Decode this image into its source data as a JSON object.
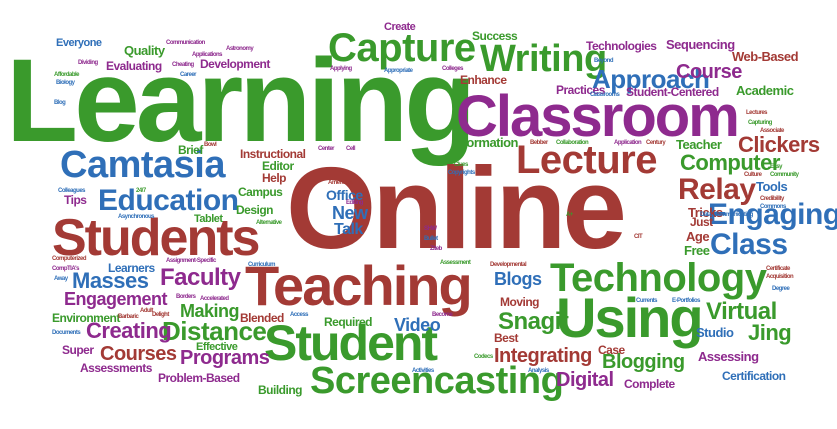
{
  "palette": {
    "green": "#3a9a2c",
    "red": "#a33a35",
    "purple": "#8e2a8e",
    "blue": "#2f6fb8",
    "olive": "#6d8a2a",
    "teal": "#2a7f8a"
  },
  "words": [
    {
      "text": "Learning",
      "color": "green"
    },
    {
      "text": "Online",
      "color": "red"
    },
    {
      "text": "Classroom",
      "color": "purple"
    },
    {
      "text": "Capture",
      "color": "green"
    },
    {
      "text": "Writing",
      "color": "green"
    },
    {
      "text": "Teaching",
      "color": "red"
    },
    {
      "text": "Student",
      "color": "green"
    },
    {
      "text": "Students",
      "color": "red"
    },
    {
      "text": "Technology",
      "color": "green"
    },
    {
      "text": "Using",
      "color": "green"
    },
    {
      "text": "Camtasia",
      "color": "blue"
    },
    {
      "text": "Lecture",
      "color": "red"
    },
    {
      "text": "Screencasting",
      "color": "green"
    },
    {
      "text": "Education",
      "color": "blue"
    },
    {
      "text": "Engaging",
      "color": "blue"
    },
    {
      "text": "Class",
      "color": "blue"
    },
    {
      "text": "Relay",
      "color": "red"
    },
    {
      "text": "Approach",
      "color": "blue"
    },
    {
      "text": "Course",
      "color": "purple"
    },
    {
      "text": "Faculty",
      "color": "purple"
    },
    {
      "text": "Masses",
      "color": "blue"
    },
    {
      "text": "Distance",
      "color": "green"
    },
    {
      "text": "Virtual",
      "color": "green"
    },
    {
      "text": "Jing",
      "color": "green"
    },
    {
      "text": "Computer",
      "color": "green"
    },
    {
      "text": "Clickers",
      "color": "red"
    },
    {
      "text": "Engagement",
      "color": "purple"
    },
    {
      "text": "Creating",
      "color": "purple"
    },
    {
      "text": "Courses",
      "color": "red"
    },
    {
      "text": "Programs",
      "color": "purple"
    },
    {
      "text": "Integrating",
      "color": "red"
    },
    {
      "text": "Digital",
      "color": "purple"
    },
    {
      "text": "Blogging",
      "color": "green"
    },
    {
      "text": "Snagit",
      "color": "green"
    },
    {
      "text": "Video",
      "color": "blue"
    },
    {
      "text": "Blogs",
      "color": "blue"
    },
    {
      "text": "Making",
      "color": "green"
    },
    {
      "text": "New",
      "color": "blue"
    },
    {
      "text": "Talk",
      "color": "blue"
    },
    {
      "text": "Office",
      "color": "blue"
    },
    {
      "text": "Sequencing",
      "color": "purple"
    },
    {
      "text": "Technologies",
      "color": "purple"
    },
    {
      "text": "Success",
      "color": "green"
    },
    {
      "text": "Create",
      "color": "purple"
    },
    {
      "text": "Web-Based",
      "color": "red"
    },
    {
      "text": "Academic",
      "color": "green"
    },
    {
      "text": "Student-Centered",
      "color": "purple"
    },
    {
      "text": "Practices",
      "color": "purple"
    },
    {
      "text": "Enhance",
      "color": "red"
    },
    {
      "text": "Information",
      "color": "green"
    },
    {
      "text": "Teacher",
      "color": "green"
    },
    {
      "text": "Tools",
      "color": "blue"
    },
    {
      "text": "Tricks",
      "color": "red"
    },
    {
      "text": "Just",
      "color": "red"
    },
    {
      "text": "Age",
      "color": "red"
    },
    {
      "text": "Free",
      "color": "green"
    },
    {
      "text": "Studio",
      "color": "blue"
    },
    {
      "text": "Assessing",
      "color": "purple"
    },
    {
      "text": "Certification",
      "color": "blue"
    },
    {
      "text": "Complete",
      "color": "purple"
    },
    {
      "text": "Case",
      "color": "red"
    },
    {
      "text": "Best",
      "color": "red"
    },
    {
      "text": "Moving",
      "color": "red"
    },
    {
      "text": "Required",
      "color": "green"
    },
    {
      "text": "Blended",
      "color": "red"
    },
    {
      "text": "Effective",
      "color": "green"
    },
    {
      "text": "Super",
      "color": "purple"
    },
    {
      "text": "Environment",
      "color": "green"
    },
    {
      "text": "Learners",
      "color": "blue"
    },
    {
      "text": "Assessments",
      "color": "purple"
    },
    {
      "text": "Problem-Based",
      "color": "purple"
    },
    {
      "text": "Building",
      "color": "green"
    },
    {
      "text": "Design",
      "color": "green"
    },
    {
      "text": "Campus",
      "color": "green"
    },
    {
      "text": "Help",
      "color": "red"
    },
    {
      "text": "Editor",
      "color": "green"
    },
    {
      "text": "Instructional",
      "color": "red"
    },
    {
      "text": "Brief",
      "color": "green"
    },
    {
      "text": "Tips",
      "color": "purple"
    },
    {
      "text": "Tablet",
      "color": "green"
    },
    {
      "text": "Quality",
      "color": "green"
    },
    {
      "text": "Evaluating",
      "color": "purple"
    },
    {
      "text": "Development",
      "color": "purple"
    },
    {
      "text": "Everyone",
      "color": "blue"
    },
    {
      "text": "Communication",
      "color": "purple"
    },
    {
      "text": "Astronomy",
      "color": "purple"
    },
    {
      "text": "Applications",
      "color": "purple"
    },
    {
      "text": "Dividing",
      "color": "purple"
    },
    {
      "text": "Affordable",
      "color": "green"
    },
    {
      "text": "Biology",
      "color": "blue"
    },
    {
      "text": "Blog",
      "color": "blue"
    },
    {
      "text": "Cheating",
      "color": "purple"
    },
    {
      "text": "Career",
      "color": "blue"
    },
    {
      "text": "Applying",
      "color": "purple"
    },
    {
      "text": "Appropriate",
      "color": "blue"
    },
    {
      "text": "Colleges",
      "color": "purple"
    },
    {
      "text": "Beyond",
      "color": "blue"
    },
    {
      "text": "Classrooms",
      "color": "blue"
    },
    {
      "text": "Lectures",
      "color": "red"
    },
    {
      "text": "Capturing",
      "color": "green"
    },
    {
      "text": "Associate",
      "color": "red"
    },
    {
      "text": "Easy",
      "color": "green"
    },
    {
      "text": "Culture",
      "color": "red"
    },
    {
      "text": "Community",
      "color": "green"
    },
    {
      "text": "Credibility",
      "color": "red"
    },
    {
      "text": "Commons",
      "color": "blue"
    },
    {
      "text": "Communicating",
      "color": "blue"
    },
    {
      "text": "Data",
      "color": "blue"
    },
    {
      "text": "Certificate",
      "color": "red"
    },
    {
      "text": "Acquisition",
      "color": "red"
    },
    {
      "text": "Degree",
      "color": "blue"
    },
    {
      "text": "Currents",
      "color": "blue"
    },
    {
      "text": "E-Portfolios",
      "color": "blue"
    },
    {
      "text": "Century",
      "color": "red"
    },
    {
      "text": "Application",
      "color": "purple"
    },
    {
      "text": "Collaboration",
      "color": "green"
    },
    {
      "text": "Bebber",
      "color": "red"
    },
    {
      "text": "Center",
      "color": "purple"
    },
    {
      "text": "Cell",
      "color": "purple"
    },
    {
      "text": "Bowl",
      "color": "red"
    },
    {
      "text": "24/7",
      "color": "green"
    },
    {
      "text": "Colleagues",
      "color": "blue"
    },
    {
      "text": "Asynchronous",
      "color": "blue"
    },
    {
      "text": "Alternative",
      "color": "green"
    },
    {
      "text": "America's",
      "color": "red"
    },
    {
      "text": "Editing",
      "color": "purple"
    },
    {
      "text": "Clues",
      "color": "green"
    },
    {
      "text": "Copyrights",
      "color": "blue"
    },
    {
      "text": "SHW",
      "color": "purple"
    },
    {
      "text": "Bullet",
      "color": "blue"
    },
    {
      "text": "A+",
      "color": "green"
    },
    {
      "text": "CIT",
      "color": "red"
    },
    {
      "text": "Curriculum",
      "color": "blue"
    },
    {
      "text": "Assessment",
      "color": "green"
    },
    {
      "text": "Developmental",
      "color": "red"
    },
    {
      "text": "CompTIA's",
      "color": "purple"
    },
    {
      "text": "Assignment-Specific",
      "color": "purple"
    },
    {
      "text": "Computerized",
      "color": "red"
    },
    {
      "text": "Away",
      "color": "blue"
    },
    {
      "text": "Borders",
      "color": "purple"
    },
    {
      "text": "Accelerated",
      "color": "purple"
    },
    {
      "text": "Adult",
      "color": "red"
    },
    {
      "text": "Delight",
      "color": "red"
    },
    {
      "text": "Barbaric",
      "color": "red"
    },
    {
      "text": "Documents",
      "color": "blue"
    },
    {
      "text": "Access",
      "color": "blue"
    },
    {
      "text": "Become",
      "color": "purple"
    },
    {
      "text": "Codecs",
      "color": "green"
    },
    {
      "text": "Activities",
      "color": "blue"
    },
    {
      "text": "Analysis",
      "color": "blue"
    },
    {
      "text": "Ziteb",
      "color": "purple"
    }
  ]
}
